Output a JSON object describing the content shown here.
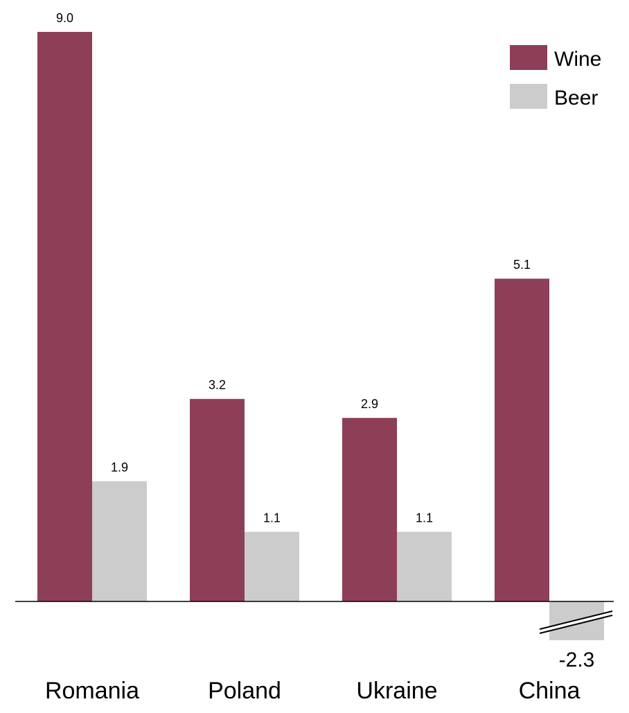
{
  "chart_data": {
    "type": "bar",
    "categories": [
      "Romania",
      "Poland",
      "Ukraine",
      "China"
    ],
    "series": [
      {
        "name": "Wine",
        "values": [
          9.0,
          3.2,
          2.9,
          5.1
        ],
        "color": "#8e3f58"
      },
      {
        "name": "Beer",
        "values": [
          1.9,
          1.1,
          1.1,
          -2.3
        ],
        "color": "#cccccc"
      }
    ],
    "value_labels": [
      [
        "9.0",
        "3.2",
        "2.9",
        "5.1"
      ],
      [
        "1.9",
        "1.1",
        "1.1",
        "-2.3"
      ]
    ],
    "truncated_bars": [
      {
        "series": "Beer",
        "category": "China"
      }
    ],
    "legend": {
      "position": "top-right"
    },
    "grid": false,
    "ylim": [
      -2.3,
      9.0
    ]
  }
}
